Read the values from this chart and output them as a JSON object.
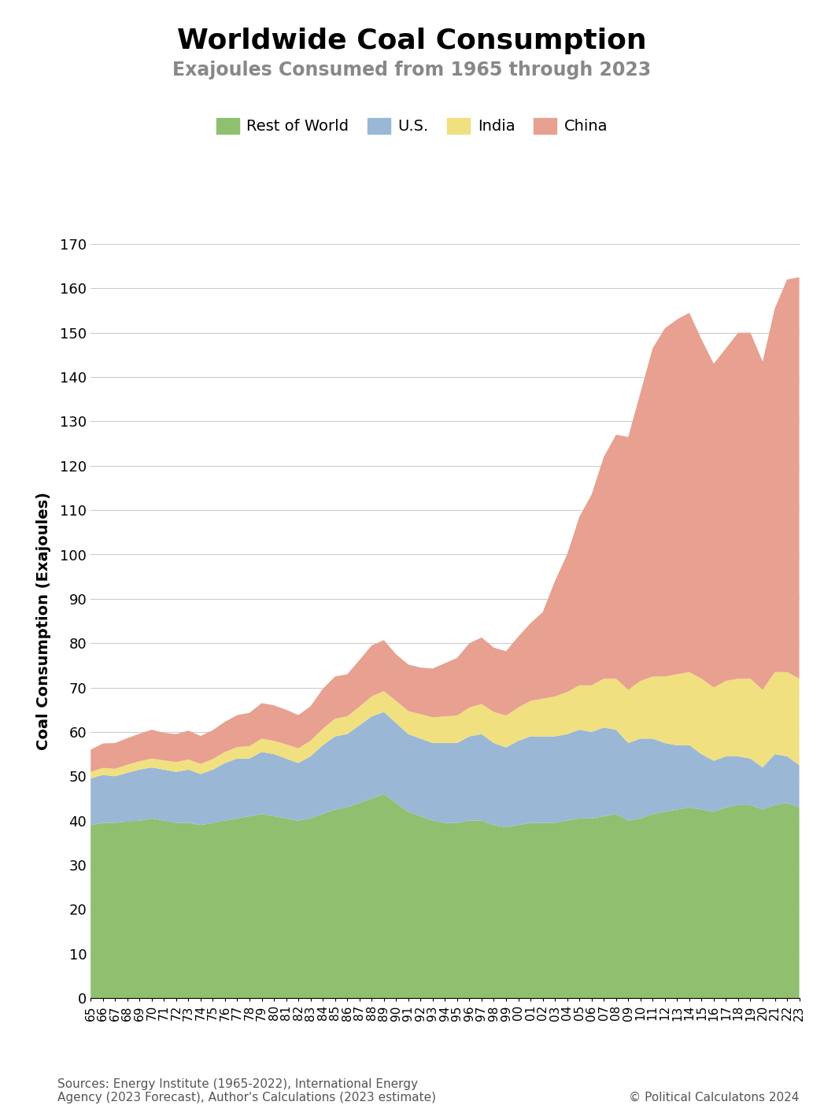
{
  "title": "Worldwide Coal Consumption",
  "subtitle": "Exajoules Consumed from 1965 through 2023",
  "ylabel": "Coal Consumption (Exajoules)",
  "source_text": "Sources: Energy Institute (1965-2022), International Energy\nAgency (2023 Forecast), Author's Calculations (2023 estimate)",
  "copyright_text": "© Political Calculatons 2024",
  "years": [
    1965,
    1966,
    1967,
    1968,
    1969,
    1970,
    1971,
    1972,
    1973,
    1974,
    1975,
    1976,
    1977,
    1978,
    1979,
    1980,
    1981,
    1982,
    1983,
    1984,
    1985,
    1986,
    1987,
    1988,
    1989,
    1990,
    1991,
    1992,
    1993,
    1994,
    1995,
    1996,
    1997,
    1998,
    1999,
    2000,
    2001,
    2002,
    2003,
    2004,
    2005,
    2006,
    2007,
    2008,
    2009,
    2010,
    2011,
    2012,
    2013,
    2014,
    2015,
    2016,
    2017,
    2018,
    2019,
    2020,
    2021,
    2022,
    2023
  ],
  "rest_of_world": [
    39.0,
    39.5,
    39.5,
    39.8,
    40.0,
    40.5,
    40.0,
    39.5,
    39.5,
    39.0,
    39.5,
    40.0,
    40.5,
    41.0,
    41.5,
    41.0,
    40.5,
    40.0,
    40.5,
    41.5,
    42.5,
    43.0,
    44.0,
    45.0,
    46.0,
    44.0,
    42.0,
    41.0,
    40.0,
    39.5,
    39.5,
    40.0,
    40.0,
    39.0,
    38.5,
    39.0,
    39.5,
    39.5,
    39.5,
    40.0,
    40.5,
    40.5,
    41.0,
    41.5,
    40.0,
    40.5,
    41.5,
    42.0,
    42.5,
    43.0,
    42.5,
    42.0,
    43.0,
    43.5,
    43.5,
    42.5,
    43.5,
    44.0,
    43.0
  ],
  "us": [
    10.5,
    10.8,
    10.5,
    11.0,
    11.5,
    11.5,
    11.5,
    11.5,
    12.0,
    11.5,
    12.0,
    13.0,
    13.5,
    13.0,
    14.0,
    14.0,
    13.5,
    13.0,
    14.0,
    15.5,
    16.5,
    16.5,
    17.5,
    18.5,
    18.5,
    18.0,
    17.5,
    17.5,
    17.5,
    18.0,
    18.0,
    19.0,
    19.5,
    18.5,
    18.0,
    19.0,
    19.5,
    19.5,
    19.5,
    19.5,
    20.0,
    19.5,
    20.0,
    19.0,
    17.5,
    18.0,
    17.0,
    15.5,
    14.5,
    14.0,
    12.5,
    11.5,
    11.5,
    11.0,
    10.5,
    9.5,
    11.5,
    10.5,
    9.5
  ],
  "india": [
    1.5,
    1.6,
    1.7,
    1.8,
    1.9,
    2.0,
    2.1,
    2.2,
    2.3,
    2.3,
    2.4,
    2.5,
    2.6,
    2.8,
    3.0,
    3.0,
    3.2,
    3.3,
    3.5,
    3.7,
    4.0,
    4.0,
    4.2,
    4.5,
    4.7,
    5.0,
    5.2,
    5.5,
    5.8,
    6.0,
    6.2,
    6.5,
    6.8,
    7.0,
    7.2,
    7.5,
    8.0,
    8.5,
    9.0,
    9.5,
    10.0,
    10.5,
    11.0,
    11.5,
    12.0,
    13.0,
    14.0,
    15.0,
    16.0,
    16.5,
    17.0,
    16.5,
    17.0,
    17.5,
    18.0,
    17.5,
    18.5,
    19.0,
    19.5
  ],
  "china": [
    5.0,
    5.5,
    5.8,
    6.0,
    6.2,
    6.5,
    6.2,
    6.3,
    6.5,
    6.3,
    6.5,
    6.8,
    7.2,
    7.5,
    8.0,
    8.0,
    7.8,
    7.5,
    7.8,
    9.0,
    9.5,
    9.5,
    10.5,
    11.5,
    11.5,
    10.5,
    10.5,
    10.5,
    11.0,
    12.0,
    13.0,
    14.5,
    15.0,
    14.5,
    14.5,
    16.0,
    17.5,
    19.5,
    26.0,
    31.0,
    38.0,
    43.0,
    50.0,
    55.0,
    57.0,
    65.0,
    74.0,
    78.5,
    80.0,
    81.0,
    76.5,
    73.0,
    75.0,
    78.0,
    78.0,
    74.0,
    82.0,
    88.5,
    90.5
  ],
  "colors": {
    "rest_of_world": "#8fbf6f",
    "us": "#9ab7d6",
    "india": "#f0e080",
    "china": "#e8a090"
  },
  "ylim": [
    0,
    170
  ],
  "yticks": [
    0,
    10,
    20,
    30,
    40,
    50,
    60,
    70,
    80,
    90,
    100,
    110,
    120,
    130,
    140,
    150,
    160,
    170
  ],
  "legend_labels": [
    "Rest of World",
    "U.S.",
    "India",
    "China"
  ],
  "background_color": "#ffffff",
  "grid_color": "#cccccc"
}
